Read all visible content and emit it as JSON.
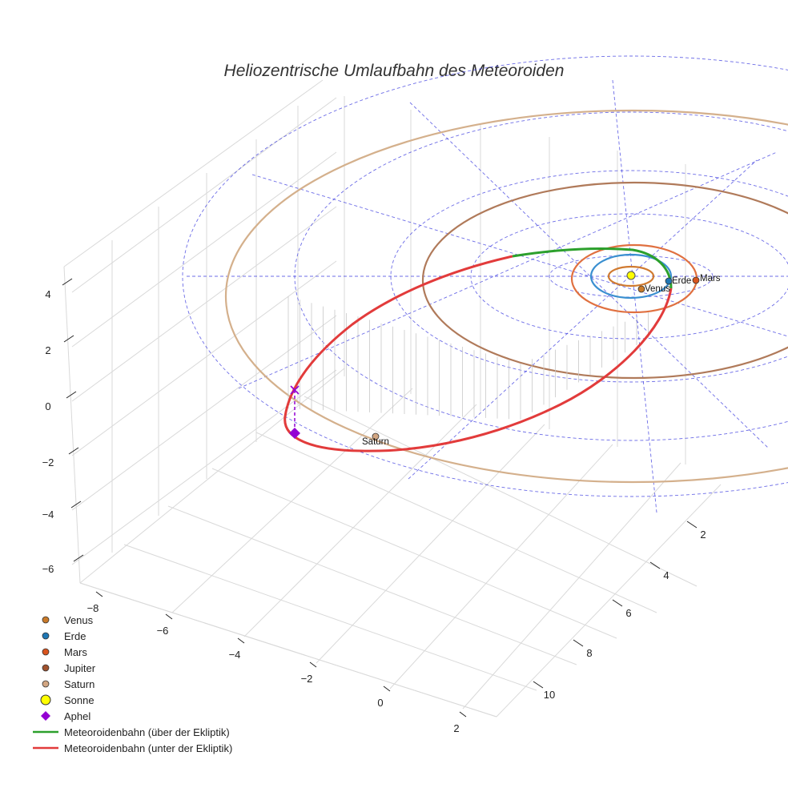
{
  "chart_data": {
    "type": "line",
    "title": "Heliozentrische Umlaufbahn des Meteoroiden",
    "projection": "3d",
    "z_ticks": [
      "4",
      "2",
      "0",
      "−2",
      "−4",
      "−6"
    ],
    "x_ticks": [
      "−8",
      "−6",
      "−4",
      "−2",
      "0",
      "2"
    ],
    "y_ticks": [
      "2",
      "4",
      "6",
      "8",
      "10"
    ],
    "grid": true,
    "legend_position": "lower-left",
    "planets": [
      {
        "name": "Venus",
        "color": "#c97a2a",
        "label": "Venus",
        "orbit_color": "#d07a30"
      },
      {
        "name": "Erde",
        "color": "#1f77b4",
        "label": "Erde",
        "orbit_color": "#3a8fd0"
      },
      {
        "name": "Mars",
        "color": "#d9541e",
        "label": "Mars",
        "orbit_color": "#e07040"
      },
      {
        "name": "Jupiter",
        "color": "#a0522d",
        "label": "",
        "orbit_color": "#b07a5a"
      },
      {
        "name": "Saturn",
        "color": "#d2a682",
        "label": "Saturn",
        "orbit_color": "#d4b08c"
      }
    ],
    "sun": {
      "name": "Sonne",
      "color": "#ffff00"
    },
    "aphel": {
      "name": "Aphel",
      "color": "#9400d3"
    },
    "series": [
      {
        "name": "Meteoroidenbahn (über der Ekliptik)",
        "color": "#2ca02c"
      },
      {
        "name": "Meteoroidenbahn (unter der Ekliptik)",
        "color": "#e23b3b"
      }
    ],
    "ecliptic_grid_color": "#3b3bdf"
  },
  "legend": [
    {
      "label": "Venus",
      "kind": "dot",
      "color": "#c97a2a"
    },
    {
      "label": "Erde",
      "kind": "dot",
      "color": "#1f77b4"
    },
    {
      "label": "Mars",
      "kind": "dot",
      "color": "#d9541e"
    },
    {
      "label": "Jupiter",
      "kind": "dot",
      "color": "#a0522d"
    },
    {
      "label": "Saturn",
      "kind": "dot",
      "color": "#d2a682"
    },
    {
      "label": "Sonne",
      "kind": "sun",
      "color": "#ffff00"
    },
    {
      "label": "Aphel",
      "kind": "diamond",
      "color": "#9400d3"
    },
    {
      "label": "Meteoroidenbahn (über der Ekliptik)",
      "kind": "line",
      "color": "#2ca02c"
    },
    {
      "label": "Meteoroidenbahn (unter der Ekliptik)",
      "kind": "line",
      "color": "#e23b3b"
    }
  ]
}
